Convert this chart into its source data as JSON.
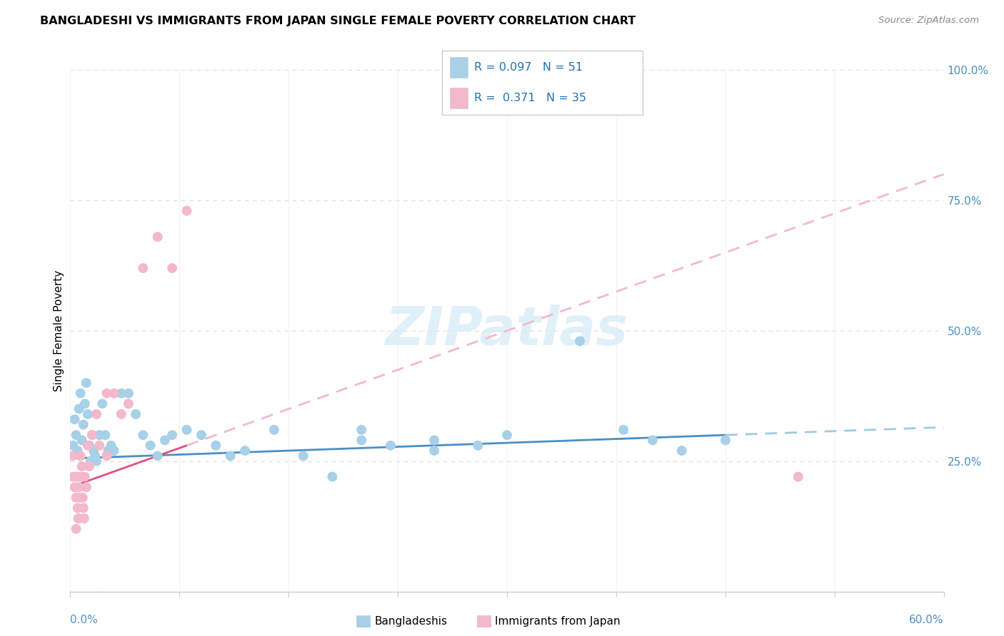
{
  "title": "BANGLADESHI VS IMMIGRANTS FROM JAPAN SINGLE FEMALE POVERTY CORRELATION CHART",
  "source": "Source: ZipAtlas.com",
  "ylabel": "Single Female Poverty",
  "legend_label1": "Bangladeshis",
  "legend_label2": "Immigrants from Japan",
  "R1": 0.097,
  "N1": 51,
  "R2": 0.371,
  "N2": 35,
  "xlim": [
    0.0,
    60.0
  ],
  "ylim": [
    0.0,
    100.0
  ],
  "color_blue": "#a8d0e8",
  "color_pink": "#f4b8cb",
  "color_blue_line": "#4a90c4",
  "color_pink_line": "#e05080",
  "color_blue_dash": "#9ecae1",
  "color_pink_dash": "#f4b8cb",
  "watermark": "ZIPatlas",
  "blue_trend_x0": 0.0,
  "blue_trend_y0": 25.5,
  "blue_trend_x1": 60.0,
  "blue_trend_y1": 31.5,
  "blue_solid_end": 45.0,
  "pink_trend_x0": 0.0,
  "pink_trend_y0": 20.0,
  "pink_trend_x1": 60.0,
  "pink_trend_y1": 80.0,
  "pink_solid_end": 8.0,
  "blue_scatter_x": [
    0.2,
    0.3,
    0.4,
    0.5,
    0.6,
    0.7,
    0.8,
    0.9,
    1.0,
    1.1,
    1.2,
    1.3,
    1.4,
    1.5,
    1.6,
    1.7,
    1.8,
    2.0,
    2.2,
    2.4,
    2.6,
    2.8,
    3.0,
    3.5,
    4.0,
    4.5,
    5.0,
    5.5,
    6.0,
    6.5,
    7.0,
    8.0,
    9.0,
    10.0,
    11.0,
    12.0,
    14.0,
    16.0,
    18.0,
    20.0,
    22.0,
    25.0,
    28.0,
    30.0,
    35.0,
    38.0,
    40.0,
    42.0,
    45.0,
    20.0,
    25.0
  ],
  "blue_scatter_y": [
    28,
    33,
    30,
    27,
    35,
    38,
    29,
    32,
    36,
    40,
    34,
    28,
    25,
    30,
    27,
    26,
    25,
    30,
    36,
    30,
    27,
    28,
    27,
    38,
    38,
    34,
    30,
    28,
    26,
    29,
    30,
    31,
    30,
    28,
    26,
    27,
    31,
    26,
    22,
    29,
    28,
    27,
    28,
    30,
    48,
    31,
    29,
    27,
    29,
    31,
    29
  ],
  "pink_scatter_x": [
    0.15,
    0.2,
    0.3,
    0.4,
    0.45,
    0.5,
    0.55,
    0.6,
    0.65,
    0.7,
    0.75,
    0.8,
    0.85,
    0.9,
    0.95,
    1.0,
    1.1,
    1.2,
    1.3,
    1.5,
    1.8,
    2.0,
    2.5,
    3.0,
    3.5,
    4.0,
    5.0,
    6.0,
    7.0,
    8.0,
    2.5,
    0.4,
    0.5,
    0.6,
    50.0
  ],
  "pink_scatter_y": [
    26,
    22,
    20,
    18,
    22,
    16,
    14,
    20,
    18,
    26,
    22,
    24,
    18,
    16,
    14,
    22,
    20,
    28,
    24,
    30,
    34,
    28,
    26,
    38,
    34,
    36,
    62,
    68,
    62,
    73,
    38,
    12,
    22,
    14,
    22
  ]
}
